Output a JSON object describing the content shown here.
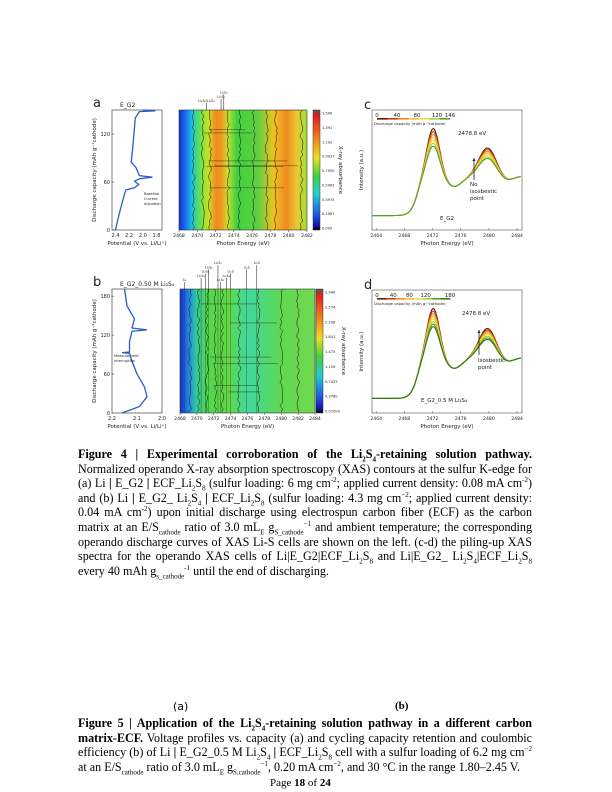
{
  "figure4": {
    "a": {
      "label": "a",
      "title": "E_G2",
      "ylabel": "Discharge capacity (mAh g⁻¹cathode)",
      "ylim": [
        0,
        150
      ],
      "yticks": [
        0,
        60,
        120
      ],
      "xlim": [
        2.45,
        1.72
      ],
      "xticks": [
        2.4,
        2.2,
        2.0,
        1.8
      ],
      "xticklabels": [
        "2.4",
        "2.2",
        "2.0",
        "1.8"
      ],
      "xlabel": "Potential (V vs. Li/Li⁺)",
      "annotation": [
        "Baseline",
        "Current",
        "Adjustion"
      ],
      "curve": [
        [
          2.4,
          0
        ],
        [
          2.36,
          15
        ],
        [
          2.3,
          35
        ],
        [
          2.25,
          50
        ],
        [
          2.12,
          53
        ],
        [
          2.06,
          57
        ],
        [
          2.12,
          61
        ],
        [
          2.05,
          64
        ],
        [
          1.86,
          66
        ],
        [
          2.05,
          68
        ],
        [
          2.1,
          78
        ],
        [
          2.17,
          85
        ],
        [
          2.15,
          100
        ],
        [
          2.13,
          120
        ],
        [
          2.11,
          140
        ],
        [
          2.05,
          148
        ],
        [
          1.82,
          149
        ],
        [
          2.0,
          150
        ]
      ],
      "heat_xlim": [
        2468,
        2482
      ],
      "heat_xticks": [
        "2468",
        "2470",
        "2472",
        "2474",
        "2476",
        "2478",
        "2480",
        "2482"
      ],
      "heat_xlabel": "Photon Energy (eV)",
      "colorbar_label": "X-ray absorbance",
      "colorbar_ticks": [
        "1.590",
        "1.391",
        "1.192",
        "0.9937",
        "0.7950",
        "0.5962",
        "0.3975",
        "0.1987",
        "0.000"
      ],
      "species": [
        {
          "name": "Li₂S₆/Li₂S₄",
          "e": 2471.0
        },
        {
          "name": "Li₂S₈",
          "e": 2472.6
        },
        {
          "name": "Li₂S₄",
          "e": 2472.9
        }
      ]
    },
    "b": {
      "label": "b",
      "title": "E_G2_0.50 M Li₂S₄",
      "ylabel": "Discharge capacity (mAh g⁻¹cathode)",
      "ylim": [
        0,
        191
      ],
      "yticks": [
        0,
        60,
        120,
        180
      ],
      "xlim": [
        2.2,
        2.0
      ],
      "xticks": [
        2.2,
        2.1,
        2.0
      ],
      "xticklabels": [
        "2.2",
        "2.1",
        "2.0"
      ],
      "xlabel": "Potential (V vs. Li/Li⁺)",
      "annotation": [
        "Measurement",
        "Interruption"
      ],
      "curve": [
        [
          2.16,
          0
        ],
        [
          2.09,
          10
        ],
        [
          2.06,
          25
        ],
        [
          2.07,
          40
        ],
        [
          2.1,
          60
        ],
        [
          2.12,
          80
        ],
        [
          2.13,
          92
        ],
        [
          2.16,
          93
        ],
        [
          2.13,
          94
        ],
        [
          2.13,
          110
        ],
        [
          2.12,
          126
        ],
        [
          2.06,
          128
        ],
        [
          2.12,
          131
        ],
        [
          2.11,
          145
        ],
        [
          2.14,
          165
        ],
        [
          2.15,
          191
        ]
      ],
      "heat_xlim": [
        2468,
        2484
      ],
      "heat_xticks": [
        "2468",
        "2470",
        "2472",
        "2474",
        "2476",
        "2478",
        "2480",
        "2482",
        "2484"
      ],
      "heat_xlabel": "Photon Energy (eV)",
      "colorbar_label": "X-ray absorbance",
      "colorbar_ticks": [
        "2.940",
        "2.574",
        "2.208",
        "1.841",
        "1.475",
        "1.109",
        "0.7425",
        "0.3760",
        "0.01000"
      ],
      "species": [
        {
          "name": "S₈",
          "e": 2468.5
        },
        {
          "name": "Li₂S₈",
          "e": 2470.5
        },
        {
          "name": "Li₂S₆",
          "e": 2471.0
        },
        {
          "name": "Li₂S₄",
          "e": 2471.4
        },
        {
          "name": "Li₂S₃",
          "e": 2472.5
        },
        {
          "name": "Li₂S₂",
          "e": 2472.8
        },
        {
          "name": "Li₂S₄",
          "e": 2473.5
        },
        {
          "name": "Li₂S",
          "e": 2474.0
        },
        {
          "name": "Li₂S",
          "e": 2475.9
        },
        {
          "name": "Li₂S",
          "e": 2477.1
        }
      ]
    },
    "c": {
      "label": "c",
      "xlim": [
        2463.4,
        2484.7
      ],
      "xticks": [
        "2464",
        "2468",
        "2472",
        "2476",
        "2480",
        "2484"
      ],
      "xlabel": "Photon Energy (eV)",
      "ylabel": "Intensity (a.u.)",
      "legend_ticks": [
        "0",
        "40",
        "80",
        "120",
        "146"
      ],
      "legend_label": "Discharge capacity (mAh g⁻¹cathode)",
      "peak_label": "2478.8 eV",
      "note": [
        "No",
        "isosbestic",
        "point"
      ],
      "sample": "E_G2",
      "series_colors": [
        "#5a1a08",
        "#c0401a",
        "#f08a20",
        "#f5c030",
        "#e8e040",
        "#a8d040",
        "#5a9e2a"
      ]
    },
    "d": {
      "label": "d",
      "xlim": [
        2463.4,
        2484.7
      ],
      "xticks": [
        "2464",
        "2468",
        "2472",
        "2476",
        "2480",
        "2484"
      ],
      "xlabel": "Photon Energy (eV)",
      "ylabel": "Intensity (a.u.)",
      "legend_ticks": [
        "0",
        "40",
        "80",
        "120",
        "180"
      ],
      "legend_label": "Discharge capacity (mAh g⁻¹cathode)",
      "peak_label": "2478.8 eV",
      "note": [
        "Isosbestic",
        "point"
      ],
      "sample": "E_G2_0.5 M Li₂S₄",
      "series_colors": [
        "#5a1a08",
        "#c0401a",
        "#f08a20",
        "#f5c030",
        "#e8e040",
        "#a8d040",
        "#5a9e2a",
        "#2f7a1a"
      ]
    }
  },
  "caption4": [
    {
      "t": "Figure 4 | Experimental corroboration of the Li",
      "b": 1
    },
    {
      "t": "2",
      "b": 1,
      "s": "sub"
    },
    {
      "t": "S",
      "b": 1
    },
    {
      "t": "4",
      "b": 1,
      "s": "sub"
    },
    {
      "t": "-retaining solution pathway.",
      "b": 1
    },
    {
      "t": " Normalized operando X-ray absorption spectroscopy (XAS) contours at the sulfur K-edge for (a) Li "
    },
    {
      "t": "|",
      "b": 1
    },
    {
      "t": " E_G2 "
    },
    {
      "t": "|",
      "b": 1
    },
    {
      "t": " ECF_Li"
    },
    {
      "t": "2",
      "s": "sub"
    },
    {
      "t": "S"
    },
    {
      "t": "8",
      "s": "sub"
    },
    {
      "t": " (sulfur loading: 6 mg cm"
    },
    {
      "t": "-2",
      "s": "sup"
    },
    {
      "t": "; applied current density: 0.08 mA cm"
    },
    {
      "t": "-2",
      "s": "sup"
    },
    {
      "t": ") and (b) Li "
    },
    {
      "t": "|",
      "b": 1
    },
    {
      "t": " E_G2_ Li"
    },
    {
      "t": "2",
      "s": "sub"
    },
    {
      "t": "S"
    },
    {
      "t": "4",
      "s": "sub"
    },
    {
      "t": " "
    },
    {
      "t": "|",
      "b": 1
    },
    {
      "t": " ECF_Li"
    },
    {
      "t": "2",
      "s": "sub"
    },
    {
      "t": "S"
    },
    {
      "t": "8",
      "s": "sub"
    },
    {
      "t": " (sulfur loading: 4.3 mg cm"
    },
    {
      "t": "−2",
      "s": "sup"
    },
    {
      "t": "; applied current density: 0.04 mA cm"
    },
    {
      "t": "-2",
      "s": "sup"
    },
    {
      "t": ")  upon initial discharge using electrospun carbon fiber (ECF) as the carbon matrix at an E/S"
    },
    {
      "t": "cathode",
      "s": "sub"
    },
    {
      "t": " ratio of 3.0 mL"
    },
    {
      "t": "E",
      "s": "sub"
    },
    {
      "t": " g"
    },
    {
      "t": "S_cathode",
      "s": "sub"
    },
    {
      "t": "−1",
      "s": "sup"
    },
    {
      "t": " and ambient temperature;  the corresponding operando discharge curves of XAS Li-S cells are shown on the left.  (c-d) the piling-up XAS spectra for the operando XAS cells of Li|E_G2|ECF_Li"
    },
    {
      "t": "2",
      "s": "sub"
    },
    {
      "t": "S"
    },
    {
      "t": "8",
      "s": "sub"
    },
    {
      "t": " and Li|E_G2_ Li"
    },
    {
      "t": "2",
      "s": "sub"
    },
    {
      "t": "S"
    },
    {
      "t": "4",
      "s": "sub"
    },
    {
      "t": "|ECF_Li"
    },
    {
      "t": "2",
      "s": "sub"
    },
    {
      "t": "S"
    },
    {
      "t": "8",
      "s": "sub"
    },
    {
      "t": " every 40 mAh g"
    },
    {
      "t": "s_cathode",
      "s": "sub"
    },
    {
      "t": "-1",
      "s": "sup"
    },
    {
      "t": " until the end of discharging."
    }
  ],
  "figure5": {
    "a_label": "(a)",
    "b_label": "(b)"
  },
  "caption5": [
    {
      "t": "Figure 5 | Application of the Li",
      "b": 1
    },
    {
      "t": "2",
      "b": 1,
      "s": "sub"
    },
    {
      "t": "S",
      "b": 1
    },
    {
      "t": "4",
      "b": 1,
      "s": "sub"
    },
    {
      "t": "-retaining solution pathway in a different carbon matrix-ECF.",
      "b": 1
    },
    {
      "t": " Voltage profiles vs. capacity (a)  and cycling capacity retention and coulombic efficiency (b) of Li "
    },
    {
      "t": "|",
      "b": 1
    },
    {
      "t": " E_G2_0.5 M Li"
    },
    {
      "t": "2",
      "s": "sub"
    },
    {
      "t": "S"
    },
    {
      "t": "4",
      "s": "sub"
    },
    {
      "t": " "
    },
    {
      "t": "|",
      "b": 1
    },
    {
      "t": " ECF_Li"
    },
    {
      "t": "2",
      "s": "sub"
    },
    {
      "t": "S"
    },
    {
      "t": "8",
      "s": "sub"
    },
    {
      "t": " cell with a sulfur loading of 6.2 mg cm"
    },
    {
      "t": "−2",
      "s": "sup"
    },
    {
      "t": " at an E/S"
    },
    {
      "t": "cathode",
      "s": "sub"
    },
    {
      "t": " ratio of 3.0 mL"
    },
    {
      "t": "E",
      "s": "sub"
    },
    {
      "t": " g"
    },
    {
      "t": "S,cathode",
      "s": "sub"
    },
    {
      "t": "−1",
      "s": "sup"
    },
    {
      "t": ", 0.20 mA cm"
    },
    {
      "t": "−2",
      "s": "sup"
    },
    {
      "t": ", and 30 °C in the range 1.80–2.45 V."
    }
  ],
  "footer": {
    "page_word": "Page ",
    "page": "18",
    "of_word": " of ",
    "total": "24"
  }
}
